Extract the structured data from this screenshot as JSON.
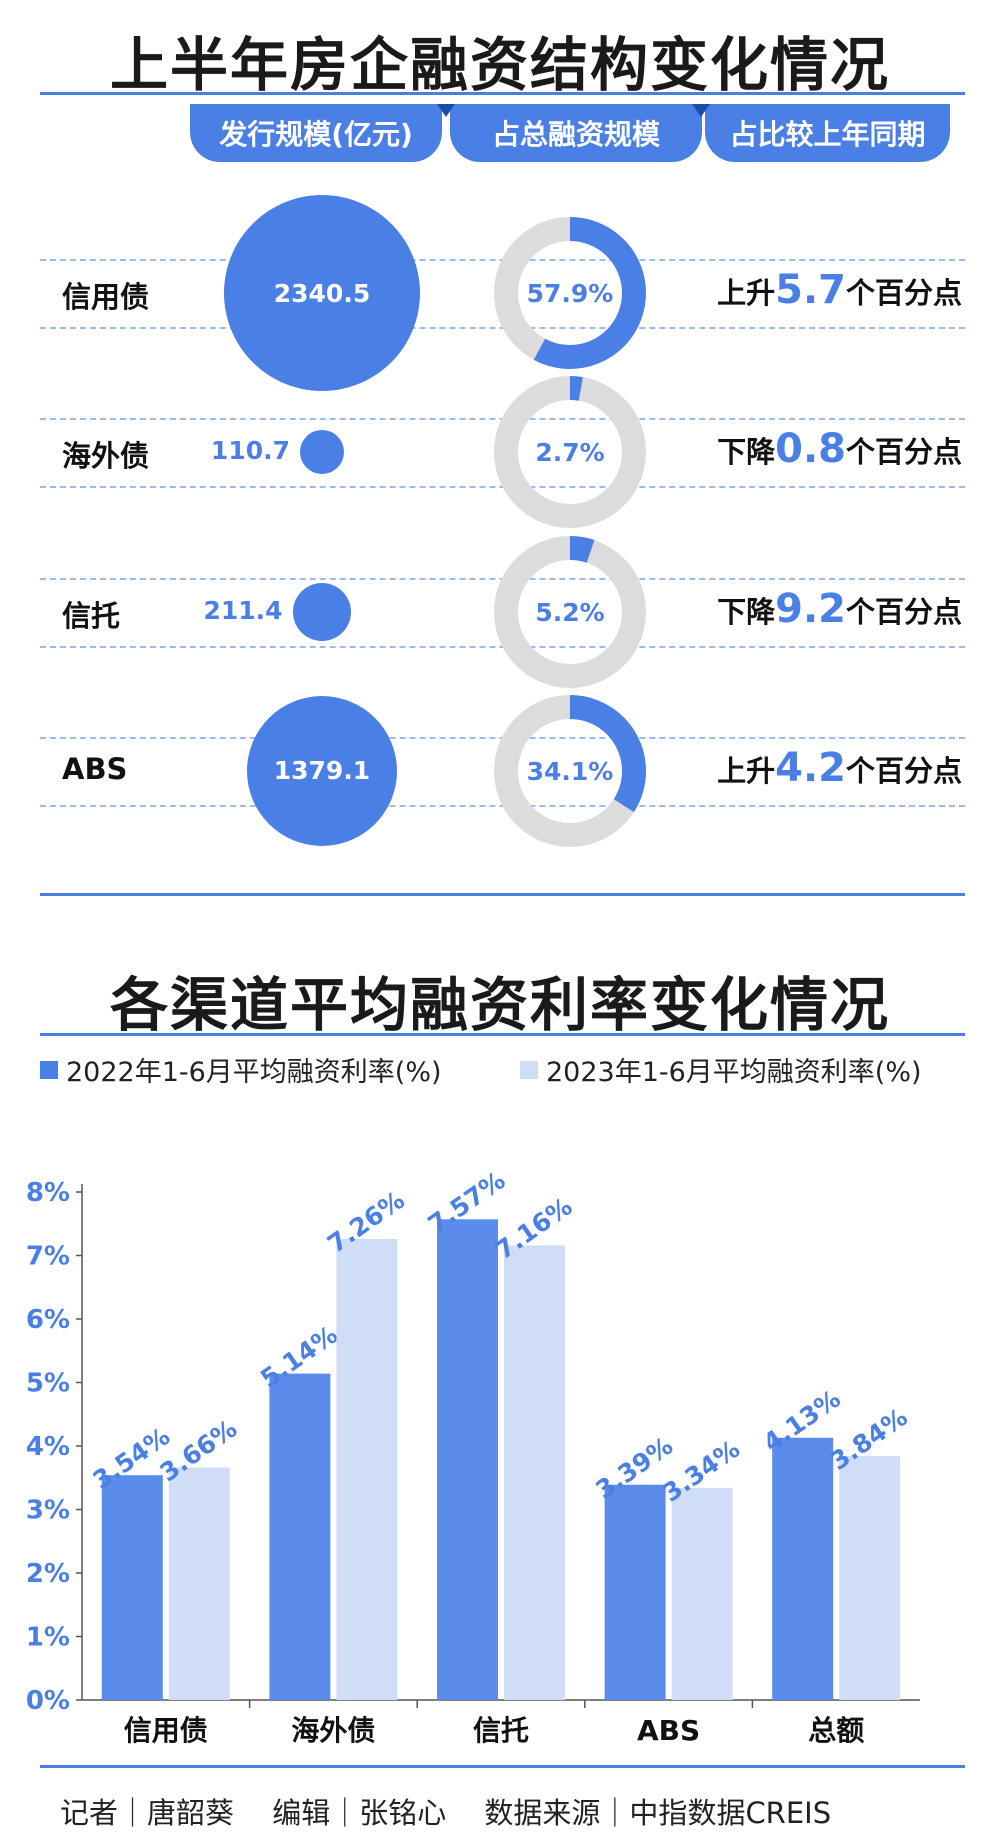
{
  "title1": "上半年房企融资结构变化情况",
  "tabs": [
    "发行规模(亿元)",
    "占总融资规模",
    "占比较上年同期"
  ],
  "rows": [
    {
      "label": "信用债",
      "value": "2340.5",
      "pct": "57.9%",
      "pct_value": 57.9,
      "dir": "上升",
      "change": "5.7",
      "unit": "个百分点"
    },
    {
      "label": "海外债",
      "value": "110.7",
      "pct": "2.7%",
      "pct_value": 2.7,
      "dir": "下降",
      "change": "0.8",
      "unit": "个百分点"
    },
    {
      "label": "信托",
      "value": "211.4",
      "pct": "5.2%",
      "pct_value": 5.2,
      "dir": "下降",
      "change": "9.2",
      "unit": "个百分点"
    },
    {
      "label": "ABS",
      "value": "1379.1",
      "pct": "34.1%",
      "pct_value": 34.1,
      "dir": "上升",
      "change": "4.2",
      "unit": "个百分点"
    }
  ],
  "title2": "各渠道平均融资利率变化情况",
  "chart_data": {
    "type": "bar",
    "categories": [
      "信用债",
      "海外债",
      "信托",
      "ABS",
      "总额"
    ],
    "series": [
      {
        "name": "2022年1-6月平均融资利率(%)",
        "values": [
          3.54,
          5.14,
          7.57,
          3.39,
          4.13
        ],
        "labels": [
          "3.54%",
          "5.14%",
          "7.57%",
          "3.39%",
          "4.13%"
        ],
        "color": "#5b8ceb"
      },
      {
        "name": "2023年1-6月平均融资利率(%)",
        "values": [
          3.66,
          7.26,
          7.16,
          3.34,
          3.84
        ],
        "labels": [
          "3.66%",
          "7.26%",
          "7.16%",
          "3.34%",
          "3.84%"
        ],
        "color": "#cfddf6"
      }
    ],
    "yticks": [
      "0%",
      "1%",
      "2%",
      "3%",
      "4%",
      "5%",
      "6%",
      "7%",
      "8%"
    ],
    "ylim": [
      0,
      8
    ],
    "legend": "top"
  },
  "footer": "记者｜唐韶葵　 编辑｜张铭心　 数据来源｜中指数据CREIS",
  "colors": {
    "accent": "#4a80e6",
    "light": "#cfddf6",
    "track": "#dcdcdc"
  }
}
